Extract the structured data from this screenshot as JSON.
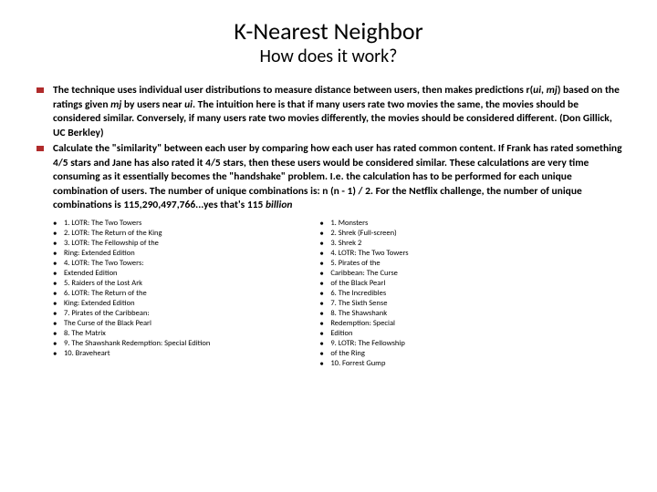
{
  "title": "K-Nearest Neighbor",
  "subtitle": "How does it work?",
  "bullet_color": "#b02b2b",
  "main_bullets": [
    {
      "pre": "The technique uses individual user distributions to measure distance between users, then makes predictions r(",
      "i1": "ui",
      "mid1": ", ",
      "i2": "mj",
      "mid2": ") based on the ratings given ",
      "i3": "mj",
      "mid3": " by users near ",
      "i4": "ui",
      "post": ". The intuition here is that if many users rate two movies the same, the movies should be considered similar. Conversely, if many users rate two movies differently, the movies should be considered different. (Don Gillick, UC Berkley)"
    },
    {
      "pre": "Calculate the \"similarity\" between each user by comparing how each user has rated common content. If Frank has rated something 4/5 stars and Jane has also rated it 4/5 stars, then these users would be considered similar. These calculations are very time consuming as it essentially becomes the \"handshake\" problem. I.e. the calculation has to be performed for each unique combination of users. The number of unique combinations is: n (n - 1) / 2. For the Netflix challenge, the number of unique combinations is 115,290,497,766...yes that's 115 ",
      "tail_i": "billion"
    }
  ],
  "left_list": [
    "1. LOTR: The Two Towers",
    "2. LOTR: The Return of the King",
    "3. LOTR: The Fellowship of the",
    "Ring: Extended Edition",
    "4. LOTR: The Two Towers:",
    "Extended Edition",
    "5. Raiders of the Lost Ark",
    "6. LOTR: The Return of the",
    "King: Extended Edition",
    "7. Pirates of the Caribbean:",
    "The Curse of the Black Pearl",
    "8. The Matrix",
    "9. The Shawshank Redemption: Special Edition",
    "10. Braveheart"
  ],
  "right_list": [
    "1. Monsters",
    "2. Shrek (Full-screen)",
    "3. Shrek 2",
    "4. LOTR: The Two Towers",
    "5. Pirates of the",
    "Caribbean: The Curse",
    "of the Black Pearl",
    "6. The Incredibles",
    "7. The Sixth Sense",
    "8. The Shawshank",
    "Redemption: Special",
    "Edition",
    "9. LOTR: The Fellowship",
    "of the Ring",
    "10. Forrest Gump"
  ]
}
